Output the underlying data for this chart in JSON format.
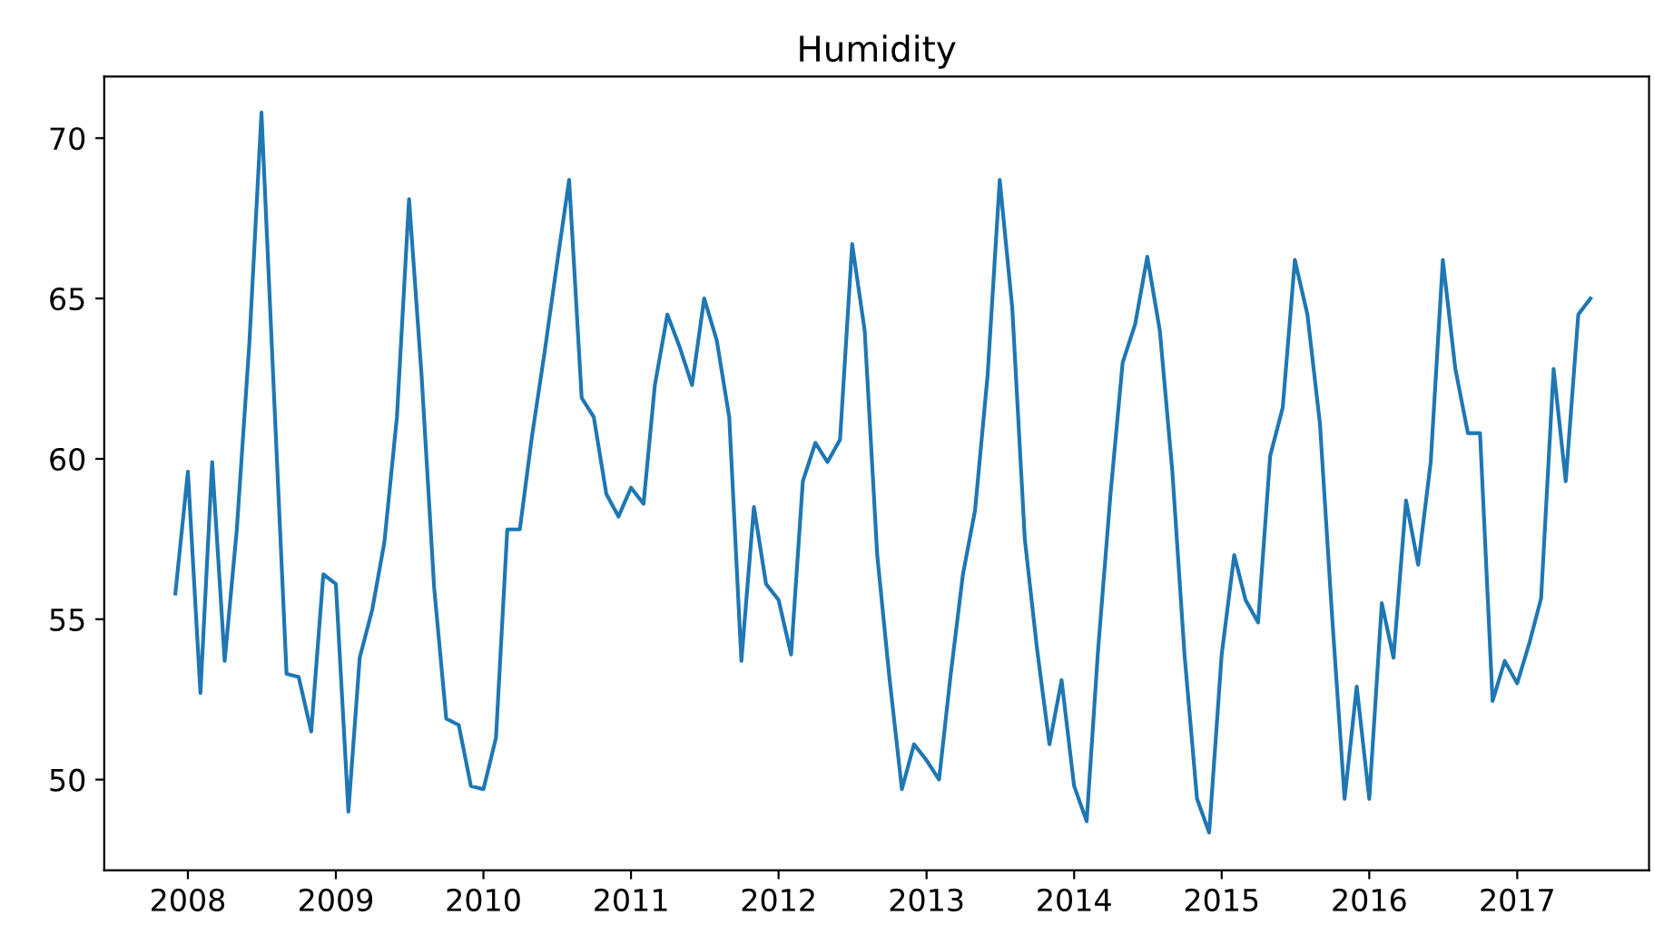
{
  "chart_data": {
    "type": "line",
    "title": "Humidity",
    "x": [
      "2007-12",
      "2008-01",
      "2008-02",
      "2008-03",
      "2008-04",
      "2008-05",
      "2008-06",
      "2008-07",
      "2008-08",
      "2008-09",
      "2008-10",
      "2008-11",
      "2008-12",
      "2009-01",
      "2009-02",
      "2009-03",
      "2009-04",
      "2009-05",
      "2009-06",
      "2009-07",
      "2009-08",
      "2009-09",
      "2009-10",
      "2009-11",
      "2009-12",
      "2010-01",
      "2010-02",
      "2010-03",
      "2010-04",
      "2010-05",
      "2010-06",
      "2010-07",
      "2010-08",
      "2010-09",
      "2010-10",
      "2010-11",
      "2010-12",
      "2011-01",
      "2011-02",
      "2011-03",
      "2011-04",
      "2011-05",
      "2011-06",
      "2011-07",
      "2011-08",
      "2011-09",
      "2011-10",
      "2011-11",
      "2011-12",
      "2012-01",
      "2012-02",
      "2012-03",
      "2012-04",
      "2012-05",
      "2012-06",
      "2012-07",
      "2012-08",
      "2012-09",
      "2012-10",
      "2012-11",
      "2012-12",
      "2013-01",
      "2013-02",
      "2013-03",
      "2013-04",
      "2013-05",
      "2013-06",
      "2013-07",
      "2013-08",
      "2013-09",
      "2013-10",
      "2013-11",
      "2013-12",
      "2014-01",
      "2014-02",
      "2014-03",
      "2014-04",
      "2014-05",
      "2014-06",
      "2014-07",
      "2014-08",
      "2014-09",
      "2014-10",
      "2014-11",
      "2014-12",
      "2015-01",
      "2015-02",
      "2015-03",
      "2015-04",
      "2015-05",
      "2015-06",
      "2015-07",
      "2015-08",
      "2015-09",
      "2015-10",
      "2015-11",
      "2015-12",
      "2016-01",
      "2016-02",
      "2016-03",
      "2016-04",
      "2016-05",
      "2016-06",
      "2016-07",
      "2016-08",
      "2016-09",
      "2016-10",
      "2016-11",
      "2016-12",
      "2017-01",
      "2017-02",
      "2017-03",
      "2017-04",
      "2017-05",
      "2017-06",
      "2017-07"
    ],
    "series": [
      {
        "color": "#1f77b4",
        "values": [
          55.8,
          59.6,
          52.7,
          59.9,
          53.7,
          57.8,
          63.6,
          70.8,
          62.0,
          53.3,
          53.2,
          51.5,
          56.4,
          56.1,
          49.0,
          53.8,
          55.3,
          57.4,
          61.3,
          68.1,
          62.6,
          56.0,
          51.9,
          51.7,
          49.8,
          49.7,
          51.3,
          57.8,
          57.8,
          60.7,
          63.3,
          66.0,
          68.7,
          61.9,
          61.3,
          58.9,
          58.2,
          59.1,
          58.6,
          62.3,
          64.5,
          63.5,
          62.3,
          65.0,
          63.7,
          61.3,
          53.7,
          58.5,
          56.1,
          55.6,
          53.9,
          59.3,
          60.5,
          59.9,
          60.6,
          66.7,
          64.0,
          57.0,
          53.2,
          49.7,
          51.1,
          50.6,
          50.0,
          53.2,
          56.4,
          58.4,
          62.6,
          68.7,
          64.7,
          57.5,
          54.1,
          51.1,
          53.1,
          49.8,
          48.7,
          54.0,
          58.9,
          63.0,
          64.2,
          66.3,
          64.0,
          59.6,
          53.9,
          49.4,
          48.35,
          53.9,
          57.0,
          55.6,
          54.9,
          60.1,
          61.6,
          66.2,
          64.5,
          61.1,
          55.1,
          49.4,
          52.9,
          49.4,
          55.5,
          53.8,
          58.7,
          56.7,
          59.9,
          66.2,
          62.8,
          60.8,
          60.8,
          52.45,
          53.7,
          53.0,
          54.3,
          55.65,
          62.8,
          59.3,
          64.5,
          65.0
        ]
      }
    ],
    "xlim": [
      "2007-06-08",
      "2017-11-23"
    ],
    "xticks": [
      "2008",
      "2009",
      "2010",
      "2011",
      "2012",
      "2013",
      "2014",
      "2015",
      "2016",
      "2017"
    ],
    "ylim": [
      47.17,
      71.92
    ],
    "yticks": [
      50,
      55,
      60,
      65,
      70
    ],
    "grid": false
  }
}
